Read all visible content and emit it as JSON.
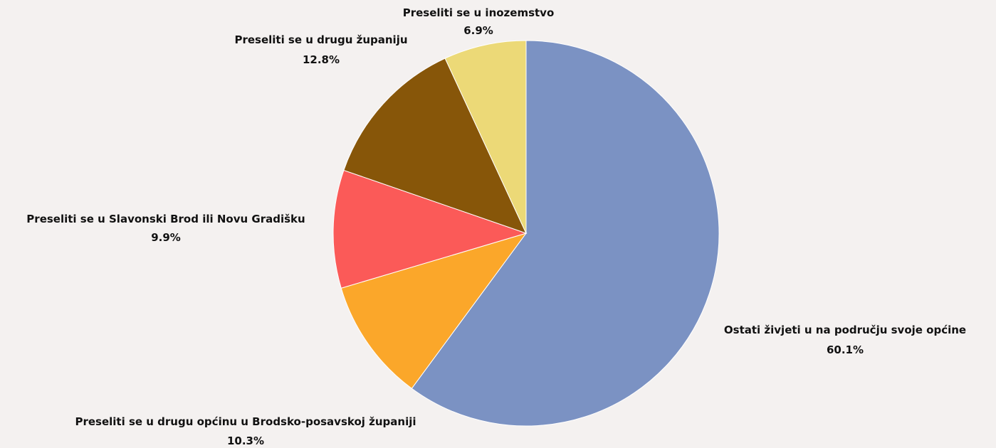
{
  "chart_data": {
    "type": "pie",
    "title": "",
    "start_angle": "top",
    "direction": "clockwise",
    "slices": [
      {
        "label": "Ostati živjeti u na području svoje općine",
        "percent_text": "60.1%",
        "value": 60.1,
        "color": "#7b92c3"
      },
      {
        "label": "Preseliti se u drugu općinu u Brodsko-posavskoj županiji",
        "percent_text": "10.3%",
        "value": 10.3,
        "color": "#fba72a"
      },
      {
        "label": "Preseliti se u Slavonski Brod ili Novu Gradišku",
        "percent_text": "9.9%",
        "value": 9.9,
        "color": "#fb5a58"
      },
      {
        "label": "Preseliti se u drugu županiju",
        "percent_text": "12.8%",
        "value": 12.8,
        "color": "#875609"
      },
      {
        "label": "Preseliti se u inozemstvo",
        "percent_text": "6.9%",
        "value": 6.9,
        "color": "#ecd977"
      }
    ]
  }
}
